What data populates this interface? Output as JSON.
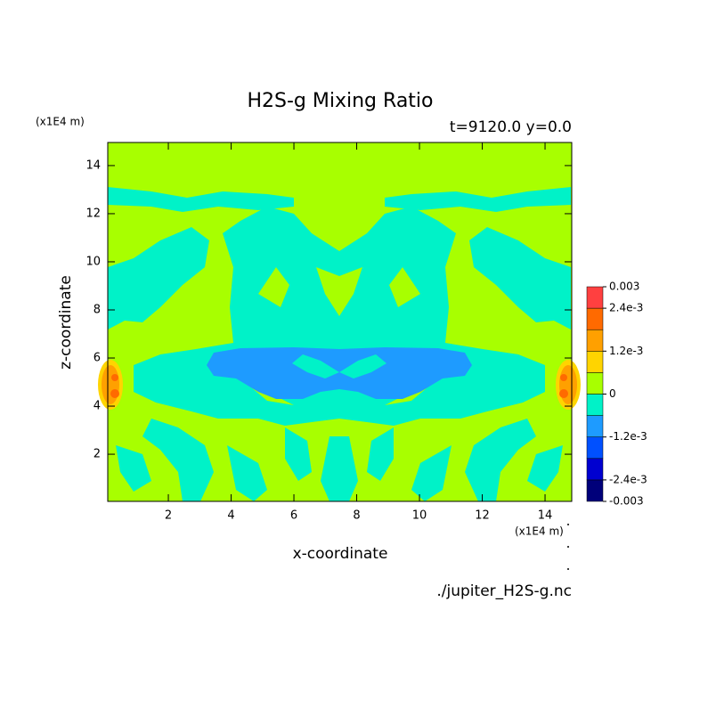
{
  "chart_data": {
    "type": "contour",
    "title": "H2S-g Mixing Ratio",
    "subtitle": "t=9120.0 y=0.0",
    "x_label": "x-coordinate",
    "y_label": "z-coordinate",
    "x_unit": "(x1E4 m)",
    "y_unit": "(x1E4 m)",
    "source": "./jupiter_H2S-g.nc",
    "xlim": [
      0.07,
      14.85
    ],
    "ylim": [
      0.04,
      14.96
    ],
    "xticks": [
      2,
      4,
      6,
      8,
      10,
      12,
      14
    ],
    "yticks": [
      2,
      4,
      6,
      8,
      10,
      12,
      14
    ],
    "levels": [
      -0.003,
      -0.0024,
      -0.0018,
      -0.0012,
      -0.0006,
      0,
      0.0006,
      0.0012,
      0.0018,
      0.0024,
      0.003
    ],
    "colors": [
      "#00007a",
      "#0000d0",
      "#0050ff",
      "#1e9bff",
      "#00f2c8",
      "#a8ff00",
      "#ffd400",
      "#ffa000",
      "#ff6a00",
      "#ff4040"
    ],
    "colorbar_ticks": [
      {
        "value": 0.003,
        "label": "0.003"
      },
      {
        "value": 0.0024,
        "label": "2.4e-3"
      },
      {
        "value": 0.0012,
        "label": "1.2e-3"
      },
      0,
      {
        "value": -0.0012,
        "label": "-1.2e-3"
      },
      {
        "value": -0.0024,
        "label": "-2.4e-3"
      },
      -0.003
    ]
  }
}
